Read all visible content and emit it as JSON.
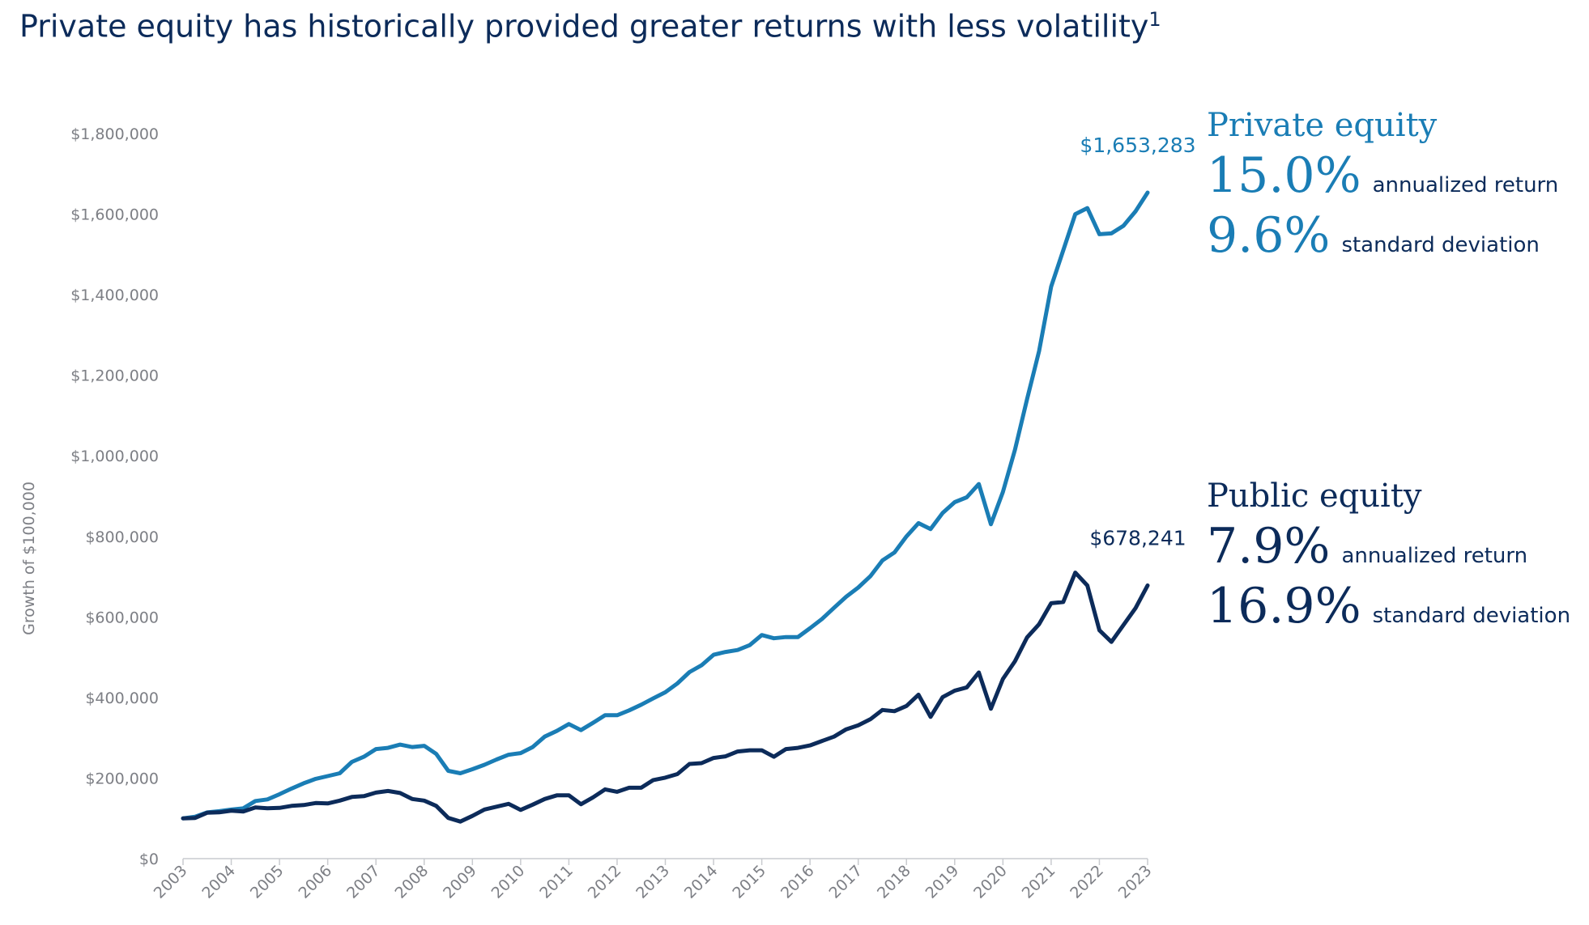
{
  "title": "Private equity has historically provided greater returns with less volatility",
  "title_footnote": "1",
  "colors": {
    "private": "#1a7db5",
    "public": "#0c2b5a",
    "axis": "#c9cbcf",
    "tick_text": "#7d7f85"
  },
  "chart_data": {
    "type": "line",
    "ylabel": "Growth of $100,000",
    "xlabel": "",
    "ylim": [
      0,
      1800000
    ],
    "xlim": [
      2003,
      2023
    ],
    "y_ticks": [
      0,
      200000,
      400000,
      600000,
      800000,
      1000000,
      1200000,
      1400000,
      1600000,
      1800000
    ],
    "y_tick_labels": [
      "$0",
      "$200,000",
      "$400,000",
      "$600,000",
      "$800,000",
      "$1,000,000",
      "$1,200,000",
      "$1,400,000",
      "$1,600,000",
      "$1,800,000"
    ],
    "x_ticks": [
      2003,
      2004,
      2005,
      2006,
      2007,
      2008,
      2009,
      2010,
      2011,
      2012,
      2013,
      2014,
      2015,
      2016,
      2017,
      2018,
      2019,
      2020,
      2021,
      2022,
      2023
    ],
    "x_tick_labels": [
      "2003",
      "2004",
      "2005",
      "2006",
      "2007",
      "2008",
      "2009",
      "2010",
      "2011",
      "2012",
      "2013",
      "2014",
      "2015",
      "2016",
      "2017",
      "2018",
      "2019",
      "2020",
      "2021",
      "2022",
      "2023"
    ],
    "grid": false,
    "series": [
      {
        "name": "Private equity",
        "color": "#1a7db5",
        "end_label": "$1,653,283",
        "x": [
          2003,
          2003.25,
          2003.5,
          2003.75,
          2004,
          2004.25,
          2004.5,
          2004.75,
          2005,
          2005.25,
          2005.5,
          2005.75,
          2006,
          2006.25,
          2006.5,
          2006.75,
          2007,
          2007.25,
          2007.5,
          2007.75,
          2008,
          2008.25,
          2008.5,
          2008.75,
          2009,
          2009.25,
          2009.5,
          2009.75,
          2010,
          2010.25,
          2010.5,
          2010.75,
          2011,
          2011.25,
          2011.5,
          2011.75,
          2012,
          2012.25,
          2012.5,
          2012.75,
          2013,
          2013.25,
          2013.5,
          2013.75,
          2014,
          2014.25,
          2014.5,
          2014.75,
          2015,
          2015.25,
          2015.5,
          2015.75,
          2016,
          2016.25,
          2016.5,
          2016.75,
          2017,
          2017.25,
          2017.5,
          2017.75,
          2018,
          2018.25,
          2018.5,
          2018.75,
          2019,
          2019.25,
          2019.5,
          2019.75,
          2020,
          2020.25,
          2020.5,
          2020.75,
          2021,
          2021.25,
          2021.5,
          2021.75,
          2022,
          2022.25,
          2022.5,
          2022.75,
          2023
        ],
        "values": [
          100000,
          104000,
          115000,
          118000,
          122000,
          125000,
          143000,
          147000,
          160000,
          174000,
          187000,
          198000,
          205000,
          212000,
          240000,
          253000,
          272000,
          275000,
          283000,
          277000,
          280000,
          260000,
          218000,
          212000,
          222000,
          233000,
          246000,
          258000,
          262000,
          277000,
          303000,
          317000,
          334000,
          319000,
          337000,
          356000,
          356000,
          368000,
          382000,
          398000,
          413000,
          435000,
          463000,
          480000,
          506000,
          513000,
          518000,
          530000,
          555000,
          547000,
          550000,
          550000,
          572000,
          595000,
          623000,
          650000,
          673000,
          701000,
          740000,
          760000,
          800000,
          833000,
          818000,
          858000,
          885000,
          897000,
          930000,
          830000,
          910000,
          1015000,
          1140000,
          1260000,
          1420000,
          1510000,
          1600000,
          1615000,
          1550000,
          1552000,
          1571000,
          1607000,
          1653283
        ]
      },
      {
        "name": "Public equity",
        "color": "#0c2b5a",
        "end_label": "$678,241",
        "x": [
          2003,
          2003.25,
          2003.5,
          2003.75,
          2004,
          2004.25,
          2004.5,
          2004.75,
          2005,
          2005.25,
          2005.5,
          2005.75,
          2006,
          2006.25,
          2006.5,
          2006.75,
          2007,
          2007.25,
          2007.5,
          2007.75,
          2008,
          2008.25,
          2008.5,
          2008.75,
          2009,
          2009.25,
          2009.5,
          2009.75,
          2010,
          2010.25,
          2010.5,
          2010.75,
          2011,
          2011.25,
          2011.5,
          2011.75,
          2012,
          2012.25,
          2012.5,
          2012.75,
          2013,
          2013.25,
          2013.5,
          2013.75,
          2014,
          2014.25,
          2014.5,
          2014.75,
          2015,
          2015.25,
          2015.5,
          2015.75,
          2016,
          2016.25,
          2016.5,
          2016.75,
          2017,
          2017.25,
          2017.5,
          2017.75,
          2018,
          2018.25,
          2018.5,
          2018.75,
          2019,
          2019.25,
          2019.5,
          2019.75,
          2020,
          2020.25,
          2020.5,
          2020.75,
          2021,
          2021.25,
          2021.5,
          2021.75,
          2022,
          2022.25,
          2022.5,
          2022.75,
          2023
        ],
        "values": [
          100000,
          101000,
          114000,
          115000,
          119000,
          117000,
          127000,
          125000,
          126000,
          131000,
          133000,
          138000,
          137000,
          144000,
          153000,
          155000,
          164000,
          168000,
          163000,
          148000,
          144000,
          131000,
          101000,
          92000,
          106000,
          122000,
          129000,
          136000,
          121000,
          134000,
          148000,
          157000,
          157000,
          135000,
          152000,
          172000,
          166000,
          176000,
          176000,
          195000,
          201000,
          210000,
          235000,
          237000,
          250000,
          254000,
          266000,
          269000,
          269000,
          253000,
          272000,
          275000,
          281000,
          292000,
          303000,
          321000,
          331000,
          346000,
          369000,
          366000,
          379000,
          407000,
          352000,
          401000,
          417000,
          425000,
          462000,
          372000,
          446000,
          490000,
          549000,
          582000,
          634000,
          637000,
          710000,
          678000,
          567000,
          538000,
          580000,
          622000,
          678241
        ]
      }
    ]
  },
  "panels": [
    {
      "name": "Private equity",
      "return_value": "15.0%",
      "return_label": "annualized return",
      "stdev_value": "9.6%",
      "stdev_label": "standard deviation"
    },
    {
      "name": "Public equity",
      "return_value": "7.9%",
      "return_label": "annualized return",
      "stdev_value": "16.9%",
      "stdev_label": "standard deviation"
    }
  ]
}
